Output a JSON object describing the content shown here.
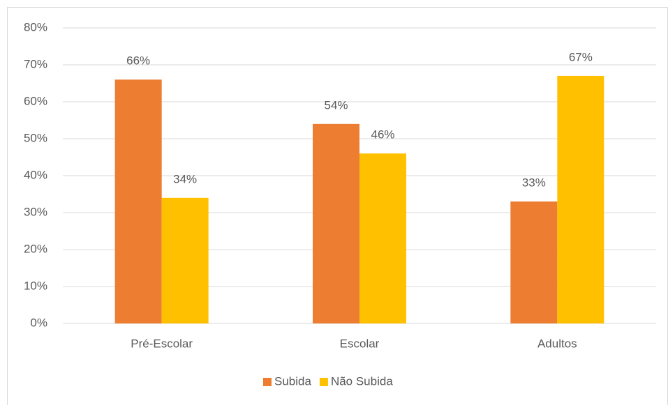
{
  "chart_data": {
    "type": "bar",
    "categories": [
      "Pré-Escolar",
      "Escolar",
      "Adultos"
    ],
    "series": [
      {
        "name": "Subida",
        "color": "#ed7d31",
        "values": [
          66,
          54,
          33
        ],
        "value_labels": [
          "66%",
          "54%",
          "33%"
        ]
      },
      {
        "name": "Não Subida",
        "color": "#ffc000",
        "values": [
          34,
          46,
          67
        ],
        "value_labels": [
          "34%",
          "46%",
          "67%"
        ]
      }
    ],
    "ylim": [
      0,
      80
    ],
    "yticks": [
      {
        "value": 0,
        "label": "0%"
      },
      {
        "value": 10,
        "label": "10%"
      },
      {
        "value": 20,
        "label": "20%"
      },
      {
        "value": 30,
        "label": "30%"
      },
      {
        "value": 40,
        "label": "40%"
      },
      {
        "value": 50,
        "label": "50%"
      },
      {
        "value": 60,
        "label": "60%"
      },
      {
        "value": 70,
        "label": "70%"
      },
      {
        "value": 80,
        "label": "80%"
      }
    ],
    "grid": true,
    "legend": "bottom"
  }
}
